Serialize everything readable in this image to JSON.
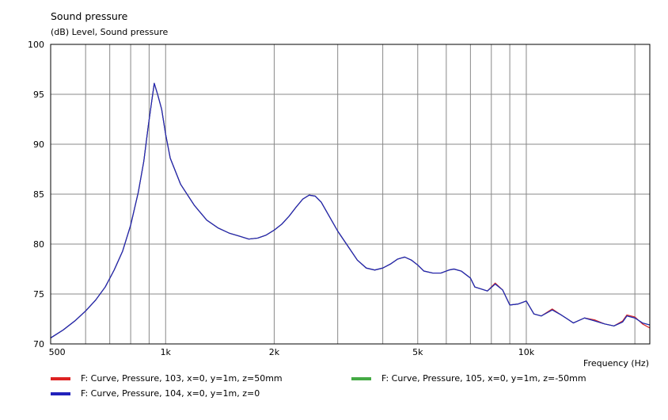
{
  "chart_data": {
    "type": "line",
    "title": "Sound pressure",
    "subtitle": "(dB)  Level, Sound pressure",
    "xlabel": "Frequency  (Hz)",
    "x_scale": "log",
    "xlim": [
      480,
      22000
    ],
    "ylim": [
      70,
      100
    ],
    "y_ticks": [
      70,
      75,
      80,
      85,
      90,
      95,
      100
    ],
    "y_tick_labels": [
      "70",
      "75",
      "80",
      "85",
      "90",
      "95",
      "100"
    ],
    "x_ticks": [
      500,
      1000,
      2000,
      5000,
      10000
    ],
    "x_tick_labels": [
      "500",
      "1k",
      "2k",
      "5k",
      "10k"
    ],
    "x_minor_gridlines": [
      600,
      700,
      800,
      900,
      1000,
      2000,
      3000,
      4000,
      5000,
      6000,
      7000,
      8000,
      9000,
      10000,
      20000
    ],
    "grid": true,
    "legend_position": "bottom",
    "series": [
      {
        "name": "F: Curve, Pressure, 103, x=0, y=1m, z=50mm",
        "color": "#dd2222",
        "points": [
          [
            480,
            70.6
          ],
          [
            520,
            71.4
          ],
          [
            560,
            72.3
          ],
          [
            600,
            73.3
          ],
          [
            640,
            74.4
          ],
          [
            680,
            75.7
          ],
          [
            720,
            77.4
          ],
          [
            760,
            79.3
          ],
          [
            800,
            81.9
          ],
          [
            840,
            85.2
          ],
          [
            870,
            88.3
          ],
          [
            895,
            91.8
          ],
          [
            915,
            94.3
          ],
          [
            930,
            96.1
          ],
          [
            950,
            95.0
          ],
          [
            975,
            93.5
          ],
          [
            1000,
            91.0
          ],
          [
            1030,
            88.6
          ],
          [
            1100,
            86.0
          ],
          [
            1200,
            83.9
          ],
          [
            1300,
            82.4
          ],
          [
            1400,
            81.6
          ],
          [
            1500,
            81.1
          ],
          [
            1600,
            80.8
          ],
          [
            1700,
            80.5
          ],
          [
            1800,
            80.6
          ],
          [
            1900,
            80.9
          ],
          [
            2000,
            81.4
          ],
          [
            2100,
            82.0
          ],
          [
            2200,
            82.8
          ],
          [
            2300,
            83.7
          ],
          [
            2400,
            84.5
          ],
          [
            2500,
            84.9
          ],
          [
            2600,
            84.8
          ],
          [
            2700,
            84.2
          ],
          [
            2800,
            83.2
          ],
          [
            3000,
            81.3
          ],
          [
            3200,
            79.8
          ],
          [
            3400,
            78.4
          ],
          [
            3600,
            77.6
          ],
          [
            3800,
            77.4
          ],
          [
            4000,
            77.6
          ],
          [
            4200,
            78.0
          ],
          [
            4400,
            78.5
          ],
          [
            4600,
            78.7
          ],
          [
            4800,
            78.4
          ],
          [
            5000,
            77.9
          ],
          [
            5200,
            77.3
          ],
          [
            5500,
            77.1
          ],
          [
            5800,
            77.1
          ],
          [
            6100,
            77.4
          ],
          [
            6300,
            77.5
          ],
          [
            6600,
            77.3
          ],
          [
            7000,
            76.6
          ],
          [
            7200,
            75.7
          ],
          [
            7500,
            75.5
          ],
          [
            7800,
            75.3
          ],
          [
            8200,
            76.1
          ],
          [
            8600,
            75.4
          ],
          [
            9000,
            73.9
          ],
          [
            9500,
            74.0
          ],
          [
            10000,
            74.3
          ],
          [
            10500,
            73.0
          ],
          [
            11000,
            72.8
          ],
          [
            11800,
            73.5
          ],
          [
            12500,
            72.9
          ],
          [
            13000,
            72.5
          ],
          [
            13500,
            72.1
          ],
          [
            14500,
            72.6
          ],
          [
            15500,
            72.4
          ],
          [
            16500,
            72.0
          ],
          [
            17500,
            71.8
          ],
          [
            18500,
            72.3
          ],
          [
            19000,
            72.9
          ],
          [
            20000,
            72.7
          ],
          [
            21000,
            72.0
          ],
          [
            22000,
            71.6
          ]
        ]
      },
      {
        "name": "F: Curve, Pressure, 104, x=0, y=1m, z=0",
        "color": "#2222bb",
        "points": [
          [
            480,
            70.6
          ],
          [
            520,
            71.4
          ],
          [
            560,
            72.3
          ],
          [
            600,
            73.3
          ],
          [
            640,
            74.4
          ],
          [
            680,
            75.7
          ],
          [
            720,
            77.4
          ],
          [
            760,
            79.3
          ],
          [
            800,
            81.9
          ],
          [
            840,
            85.2
          ],
          [
            870,
            88.3
          ],
          [
            895,
            91.8
          ],
          [
            915,
            94.3
          ],
          [
            930,
            96.1
          ],
          [
            950,
            95.0
          ],
          [
            975,
            93.5
          ],
          [
            1000,
            91.0
          ],
          [
            1030,
            88.6
          ],
          [
            1100,
            86.0
          ],
          [
            1200,
            83.9
          ],
          [
            1300,
            82.4
          ],
          [
            1400,
            81.6
          ],
          [
            1500,
            81.1
          ],
          [
            1600,
            80.8
          ],
          [
            1700,
            80.5
          ],
          [
            1800,
            80.6
          ],
          [
            1900,
            80.9
          ],
          [
            2000,
            81.4
          ],
          [
            2100,
            82.0
          ],
          [
            2200,
            82.8
          ],
          [
            2300,
            83.7
          ],
          [
            2400,
            84.5
          ],
          [
            2500,
            84.9
          ],
          [
            2600,
            84.8
          ],
          [
            2700,
            84.2
          ],
          [
            2800,
            83.2
          ],
          [
            3000,
            81.3
          ],
          [
            3200,
            79.8
          ],
          [
            3400,
            78.4
          ],
          [
            3600,
            77.6
          ],
          [
            3800,
            77.4
          ],
          [
            4000,
            77.6
          ],
          [
            4200,
            78.0
          ],
          [
            4400,
            78.5
          ],
          [
            4600,
            78.7
          ],
          [
            4800,
            78.4
          ],
          [
            5000,
            77.9
          ],
          [
            5200,
            77.3
          ],
          [
            5500,
            77.1
          ],
          [
            5800,
            77.1
          ],
          [
            6100,
            77.4
          ],
          [
            6300,
            77.5
          ],
          [
            6600,
            77.3
          ],
          [
            7000,
            76.6
          ],
          [
            7200,
            75.7
          ],
          [
            7500,
            75.5
          ],
          [
            7800,
            75.3
          ],
          [
            8200,
            76.0
          ],
          [
            8600,
            75.4
          ],
          [
            9000,
            73.9
          ],
          [
            9500,
            74.0
          ],
          [
            10000,
            74.3
          ],
          [
            10500,
            73.0
          ],
          [
            11000,
            72.8
          ],
          [
            11800,
            73.4
          ],
          [
            12500,
            72.9
          ],
          [
            13000,
            72.5
          ],
          [
            13500,
            72.1
          ],
          [
            14500,
            72.6
          ],
          [
            15500,
            72.3
          ],
          [
            16500,
            72.0
          ],
          [
            17500,
            71.8
          ],
          [
            18500,
            72.2
          ],
          [
            19000,
            72.8
          ],
          [
            20000,
            72.6
          ],
          [
            21000,
            72.1
          ],
          [
            22000,
            71.9
          ]
        ]
      },
      {
        "name": "F: Curve, Pressure, 105, x=0, y=1m, z=-50mm",
        "color": "#44aa44",
        "points": [
          [
            480,
            70.6
          ],
          [
            520,
            71.4
          ],
          [
            560,
            72.3
          ],
          [
            600,
            73.3
          ],
          [
            640,
            74.4
          ],
          [
            680,
            75.7
          ],
          [
            720,
            77.4
          ],
          [
            760,
            79.3
          ],
          [
            800,
            81.9
          ],
          [
            840,
            85.2
          ],
          [
            870,
            88.3
          ],
          [
            895,
            91.8
          ],
          [
            915,
            94.3
          ],
          [
            930,
            96.1
          ],
          [
            950,
            95.0
          ],
          [
            975,
            93.5
          ],
          [
            1000,
            91.0
          ],
          [
            1030,
            88.6
          ],
          [
            1100,
            86.0
          ],
          [
            1200,
            83.9
          ],
          [
            1300,
            82.4
          ],
          [
            1400,
            81.6
          ],
          [
            1500,
            81.1
          ],
          [
            1600,
            80.8
          ],
          [
            1700,
            80.5
          ],
          [
            1800,
            80.6
          ],
          [
            1900,
            80.9
          ],
          [
            2000,
            81.4
          ],
          [
            2100,
            82.0
          ],
          [
            2200,
            82.8
          ],
          [
            2300,
            83.7
          ],
          [
            2400,
            84.5
          ],
          [
            2500,
            84.9
          ],
          [
            2600,
            84.8
          ],
          [
            2700,
            84.2
          ],
          [
            2800,
            83.2
          ],
          [
            3000,
            81.3
          ],
          [
            3200,
            79.8
          ],
          [
            3400,
            78.4
          ],
          [
            3600,
            77.6
          ],
          [
            3800,
            77.4
          ],
          [
            4000,
            77.6
          ],
          [
            4200,
            78.0
          ],
          [
            4400,
            78.5
          ],
          [
            4600,
            78.7
          ],
          [
            4800,
            78.4
          ],
          [
            5000,
            77.9
          ],
          [
            5200,
            77.3
          ],
          [
            5500,
            77.1
          ],
          [
            5800,
            77.1
          ],
          [
            6100,
            77.4
          ],
          [
            6300,
            77.5
          ],
          [
            6600,
            77.3
          ],
          [
            7000,
            76.6
          ],
          [
            7200,
            75.7
          ],
          [
            7500,
            75.5
          ],
          [
            7800,
            75.3
          ],
          [
            8200,
            76.0
          ],
          [
            8600,
            75.4
          ],
          [
            9000,
            73.9
          ],
          [
            9500,
            74.0
          ],
          [
            10000,
            74.3
          ],
          [
            10500,
            73.0
          ],
          [
            11000,
            72.8
          ],
          [
            11800,
            73.4
          ],
          [
            12500,
            72.9
          ],
          [
            13000,
            72.5
          ],
          [
            13500,
            72.1
          ],
          [
            14500,
            72.6
          ],
          [
            15500,
            72.3
          ],
          [
            16500,
            72.0
          ],
          [
            17500,
            71.8
          ],
          [
            18500,
            72.2
          ],
          [
            19000,
            72.8
          ],
          [
            20000,
            72.6
          ],
          [
            21000,
            72.1
          ],
          [
            22000,
            71.9
          ]
        ]
      }
    ]
  }
}
